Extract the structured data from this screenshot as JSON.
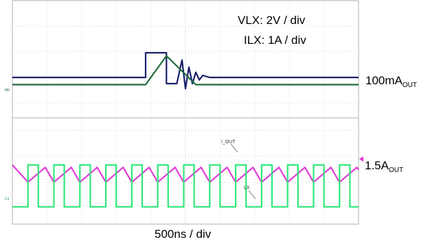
{
  "annotations": {
    "vlx_scale": "VLX: 2V / div",
    "ilx_scale": "ILX: 1A / div",
    "time_scale": "500ns / div",
    "trace_iout_tag": "I_OUT",
    "trace_lx_tag": "LX",
    "ch_marker_top": "M6",
    "ch_marker_bottom": "C4"
  },
  "labels": {
    "load_step_main": "100mA",
    "load_step_sub": "OUT",
    "steady_main": "1.5A",
    "steady_sub": "OUT"
  },
  "colors": {
    "lx_trace_top": "#1b1f6b",
    "il_trace_top": "#1f6b3a",
    "il_trace_bottom": "#e23ad8",
    "lx_trace_bottom": "#2ee87a",
    "grid": "#c8c8c8",
    "marker": "#e23ad8"
  },
  "chart_data": [
    {
      "type": "line",
      "panel": "top",
      "x_unit": "div",
      "xlim": [
        0,
        10
      ],
      "grid": true,
      "series": [
        {
          "name": "VLX",
          "x": [
            0,
            3.85,
            3.85,
            4.45,
            4.45,
            4.75,
            4.9,
            5.0,
            5.1,
            5.2,
            5.3,
            5.4,
            5.5,
            5.7,
            10
          ],
          "y": [
            0,
            0,
            1.2,
            1.2,
            -0.3,
            -0.3,
            0.85,
            -0.55,
            0.5,
            -0.3,
            0.25,
            -0.12,
            0.1,
            0,
            0
          ]
        },
        {
          "name": "ILX",
          "x": [
            0,
            3.85,
            4.45,
            5.3,
            10
          ],
          "y": [
            -0.35,
            -0.35,
            1.05,
            -0.35,
            -0.35
          ]
        }
      ]
    },
    {
      "type": "line",
      "panel": "bottom",
      "x_unit": "div",
      "xlim": [
        0,
        10
      ],
      "grid": true,
      "series": [
        {
          "name": "I_OUT",
          "x": [
            0,
            0.45,
            0.95,
            1.2,
            1.7,
            1.95,
            2.45,
            2.7,
            3.2,
            3.45,
            3.95,
            4.2,
            4.7,
            4.95,
            5.45,
            5.7,
            6.2,
            6.45,
            6.95,
            7.2,
            7.7,
            7.95,
            8.45,
            8.7,
            9.2,
            9.45,
            9.95,
            10
          ],
          "y": [
            0.8,
            -0.6,
            0.6,
            -0.6,
            0.6,
            -0.6,
            0.6,
            -0.6,
            0.6,
            -0.6,
            0.6,
            -0.6,
            0.6,
            -0.6,
            0.6,
            -0.6,
            0.6,
            -0.6,
            0.6,
            -0.6,
            0.6,
            -0.6,
            0.6,
            -0.6,
            0.6,
            -0.6,
            0.6,
            0.4
          ]
        },
        {
          "name": "LX",
          "period": 0.75,
          "high_fraction": 0.4,
          "first_rise": 0.45,
          "y_high": 0.8,
          "y_low": -2.6
        }
      ]
    }
  ]
}
